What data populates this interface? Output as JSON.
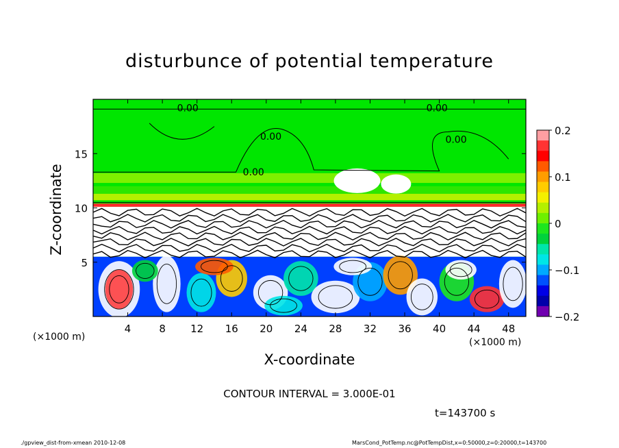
{
  "chart_data": {
    "type": "heatmap",
    "title": "disturbunce of potential temperature",
    "xlabel": "X-coordinate",
    "ylabel": "Z-coordinate",
    "x_unit": "(×1000 m)",
    "x_ticks": [
      4,
      8,
      12,
      16,
      20,
      24,
      28,
      32,
      36,
      40,
      44,
      48
    ],
    "y_ticks": [
      5,
      10,
      15
    ],
    "xlim": [
      0,
      50
    ],
    "ylim": [
      0,
      20
    ],
    "colorbar": {
      "range": [
        -0.2,
        0.2
      ],
      "ticks": [
        0.2,
        0.1,
        0,
        -0.1,
        -0.2
      ],
      "tick_labels": [
        "0.2",
        "0.1",
        "0",
        "−0.1",
        "−0.2"
      ],
      "colors": [
        "#ff9ea2",
        "#ff3333",
        "#ff0000",
        "#ff5a00",
        "#ff9d00",
        "#ffcc00",
        "#f4f000",
        "#b4f000",
        "#6ef000",
        "#1ee61e",
        "#00d23c",
        "#00e6aa",
        "#00e6e6",
        "#00aaff",
        "#0050ff",
        "#0000e6",
        "#0000aa",
        "#7000b0"
      ]
    },
    "contour_labels": [
      "0.00",
      "0.00",
      "0.00",
      "0.00",
      "0.00"
    ],
    "contour_interval_text": "CONTOUR INTERVAL = 3.000E-01",
    "time_text": "t=143700 s"
  },
  "footer": {
    "left": "./gpview_dist-from-xmean   2010-12-08",
    "right": "MarsCond_PotTemp.nc@PotTempDist,x=0:50000,z=0:20000,t=143700"
  },
  "colors": {
    "background": "#00e600",
    "band_yellowgreen": "#7ef000",
    "band_cyan": "#00dcc8",
    "strong_positive": "#ff2a2a",
    "strong_negative": "#0040ff"
  }
}
